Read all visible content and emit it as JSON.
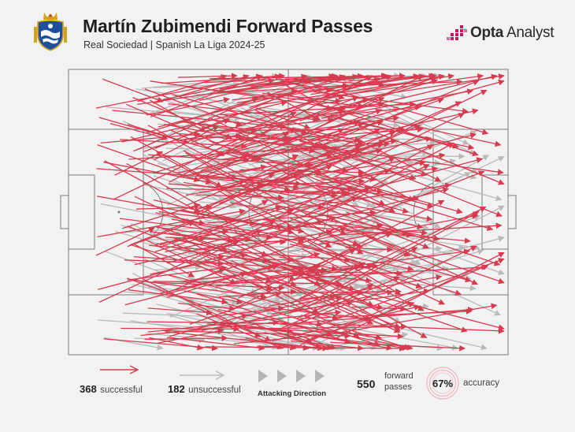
{
  "header": {
    "title": "Martín Zubimendi Forward Passes",
    "subtitle": "Real Sociedad | Spanish La Liga 2024-25",
    "brand": {
      "bold": "Opta",
      "light": " Analyst"
    }
  },
  "colors": {
    "successful": "#d63b4f",
    "unsuccessful": "#b9b9b9",
    "pitch_lines": "#7a7a7a",
    "background": "#f2f2f2",
    "brand_pink": "#c2185b",
    "crest_blue": "#1f4e9c",
    "crest_gold": "#d4a017"
  },
  "icons": [
    "club-crest-icon",
    "opta-analyst-logo-icon",
    "attacking-direction-icon",
    "accuracy-ring-icon"
  ],
  "legend": {
    "successful_count": "368",
    "successful_label": "successful",
    "unsuccessful_count": "182",
    "unsuccessful_label": "unsuccessful",
    "direction_label": "Attacking Direction",
    "forward_count": "550",
    "forward_label_line1": "forward",
    "forward_label_line2": "passes",
    "accuracy_value": "67%",
    "accuracy_label": "accuracy"
  }
}
